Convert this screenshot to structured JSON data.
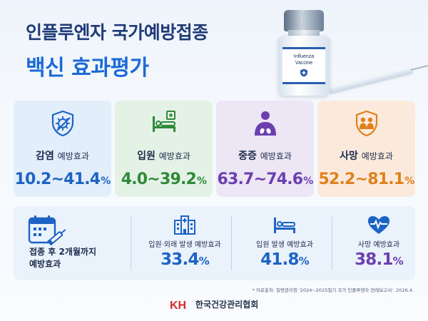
{
  "header": {
    "title_line1": "인플루엔자 국가예방접종",
    "title_line2": "백신 효과평가"
  },
  "vial": {
    "label_line1": "Influenza",
    "label_line2": "Vaccine"
  },
  "cards": [
    {
      "label": "감염",
      "sub": "예방효과",
      "value": "10.2~41.4",
      "unit": "%",
      "icon": "virus-shield-icon",
      "color": "#1d63c4"
    },
    {
      "label": "입원",
      "sub": "예방효과",
      "value": "4.0~39.2",
      "unit": "%",
      "icon": "hospital-bed-icon",
      "color": "#2f8a3a"
    },
    {
      "label": "중증",
      "sub": "예방효과",
      "value": "63.7~74.6",
      "unit": "%",
      "icon": "lungs-person-icon",
      "color": "#6c3fb0"
    },
    {
      "label": "사망",
      "sub": "예방효과",
      "value": "52.2~81.1",
      "unit": "%",
      "icon": "family-shield-icon",
      "color": "#e0801c"
    }
  ],
  "bottom": {
    "left_line1": "접종 후 2개월까지",
    "left_line2": "예방효과",
    "stats": [
      {
        "label": "입원·외래 발생 예방효과",
        "value": "33.4",
        "unit": "%",
        "icon": "hospital-building-icon"
      },
      {
        "label": "입원 발생 예방효과",
        "value": "41.8",
        "unit": "%",
        "icon": "bed-icon"
      },
      {
        "label": "사망 예방효과",
        "value": "38.1",
        "unit": "%",
        "icon": "heart-pulse-icon"
      }
    ]
  },
  "source": "* 자료출처: 질병관리청 '2024~2025절기 국가 인플루엔자 연례보고서'. 2026.4.",
  "footer": {
    "logo_text": "KH",
    "org_name": "한국건강관리협회"
  }
}
